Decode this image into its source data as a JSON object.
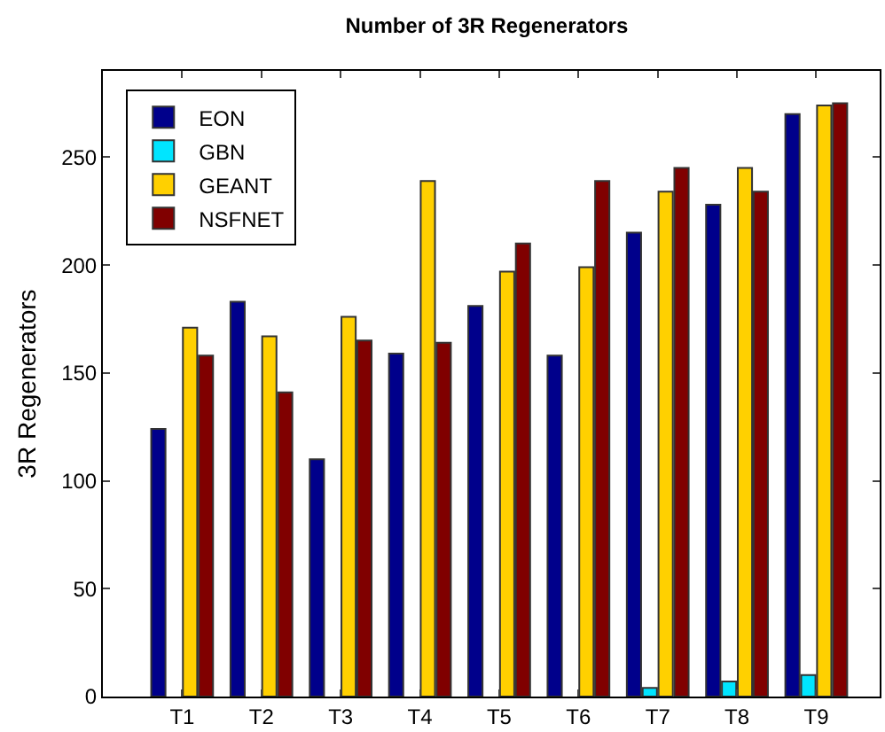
{
  "chart_data": {
    "type": "bar",
    "title": "Number of 3R Regenerators",
    "ylabel": "3R Regenerators",
    "categories": [
      "T1",
      "T2",
      "T3",
      "T4",
      "T5",
      "T6",
      "T7",
      "T8",
      "T9"
    ],
    "series": [
      {
        "name": "EON",
        "color": "#00008b",
        "values": [
          124,
          183,
          110,
          159,
          181,
          158,
          215,
          228,
          270
        ]
      },
      {
        "name": "GBN",
        "color": "#00e5ff",
        "values": [
          null,
          null,
          null,
          null,
          null,
          null,
          4,
          7,
          10
        ]
      },
      {
        "name": "GEANT",
        "color": "#ffd000",
        "values": [
          171,
          167,
          176,
          239,
          197,
          199,
          234,
          245,
          274
        ]
      },
      {
        "name": "NSFNET",
        "color": "#800000",
        "values": [
          158,
          141,
          165,
          164,
          210,
          239,
          245,
          234,
          275
        ]
      }
    ],
    "ylim": [
      0,
      290
    ],
    "yticks": [
      0,
      50,
      100,
      150,
      200,
      250
    ],
    "grid": false,
    "legend": "top left"
  }
}
